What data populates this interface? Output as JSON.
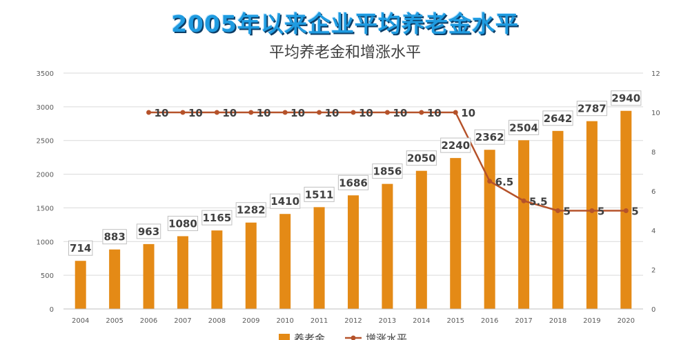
{
  "banner_title": "2005年以来企业平均养老金水平",
  "chart_data": {
    "type": "bar",
    "title": "平均养老金和增涨水平",
    "categories": [
      "2004",
      "2005",
      "2006",
      "2007",
      "2008",
      "2009",
      "2010",
      "2011",
      "2012",
      "2013",
      "2014",
      "2015",
      "2016",
      "2017",
      "2018",
      "2019",
      "2020"
    ],
    "series": [
      {
        "name": "养老金",
        "type": "bar",
        "axis": "left",
        "values": [
          714,
          883,
          963,
          1080,
          1165,
          1282,
          1410,
          1511,
          1686,
          1856,
          2050,
          2240,
          2362,
          2504,
          2642,
          2787,
          2940
        ]
      },
      {
        "name": "增涨水平",
        "type": "line",
        "axis": "right",
        "values": [
          null,
          null,
          10,
          10,
          10,
          10,
          10,
          10,
          10,
          10,
          10,
          10,
          6.5,
          5.5,
          5,
          5,
          5
        ]
      }
    ],
    "y_left": {
      "min": 0,
      "max": 3500,
      "ticks": [
        0,
        500,
        1000,
        1500,
        2000,
        2500,
        3000,
        3500
      ]
    },
    "y_right": {
      "min": 0,
      "max": 12,
      "ticks": [
        0,
        2,
        4,
        6,
        8,
        10,
        12
      ]
    },
    "grid": true,
    "legend_position": "bottom",
    "colors": {
      "bar": "#e48a16",
      "line": "#b5522a",
      "grid": "#d9d9d9",
      "title": "#1f9be0"
    }
  }
}
